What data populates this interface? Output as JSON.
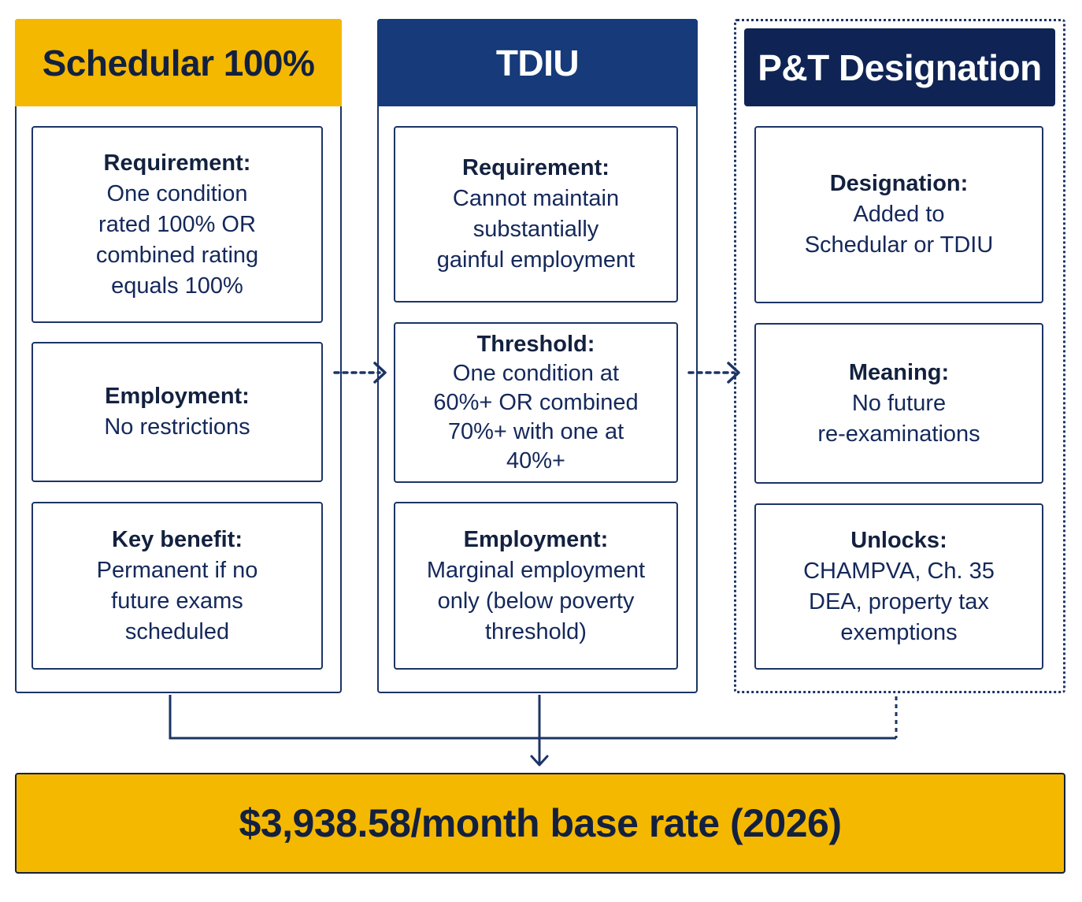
{
  "columns": [
    {
      "title": "Schedular 100%",
      "cards": [
        {
          "label": "Requirement:",
          "body": "One condition\nrated 100% OR\ncombined rating\nequals 100%"
        },
        {
          "label": "Employment:",
          "body": "No restrictions"
        },
        {
          "label": "Key benefit:",
          "body": "Permanent if no\nfuture exams\nscheduled"
        }
      ]
    },
    {
      "title": "TDIU",
      "cards": [
        {
          "label": "Requirement:",
          "body": "Cannot maintain\nsubstantially\ngainful employment"
        },
        {
          "label": "Threshold:",
          "body": "One condition at\n60%+ OR combined\n70%+ with one at\n40%+"
        },
        {
          "label": "Employment:",
          "body": "Marginal employment\nonly (below poverty\nthreshold)"
        }
      ]
    },
    {
      "title": "P&T Designation",
      "cards": [
        {
          "label": "Designation:",
          "body": "Added to\nSchedular or TDIU"
        },
        {
          "label": "Meaning:",
          "body": "No future\nre-examinations"
        },
        {
          "label": "Unlocks:",
          "body": "CHAMPVA, Ch. 35\nDEA, property tax\nexemptions"
        }
      ]
    }
  ],
  "result": {
    "text": "$3,938.58/month base rate (2026)"
  },
  "colors": {
    "gold": "#f5b800",
    "navy": "#163a7a",
    "dark_navy": "#0f2454",
    "border": "#1c3466"
  }
}
